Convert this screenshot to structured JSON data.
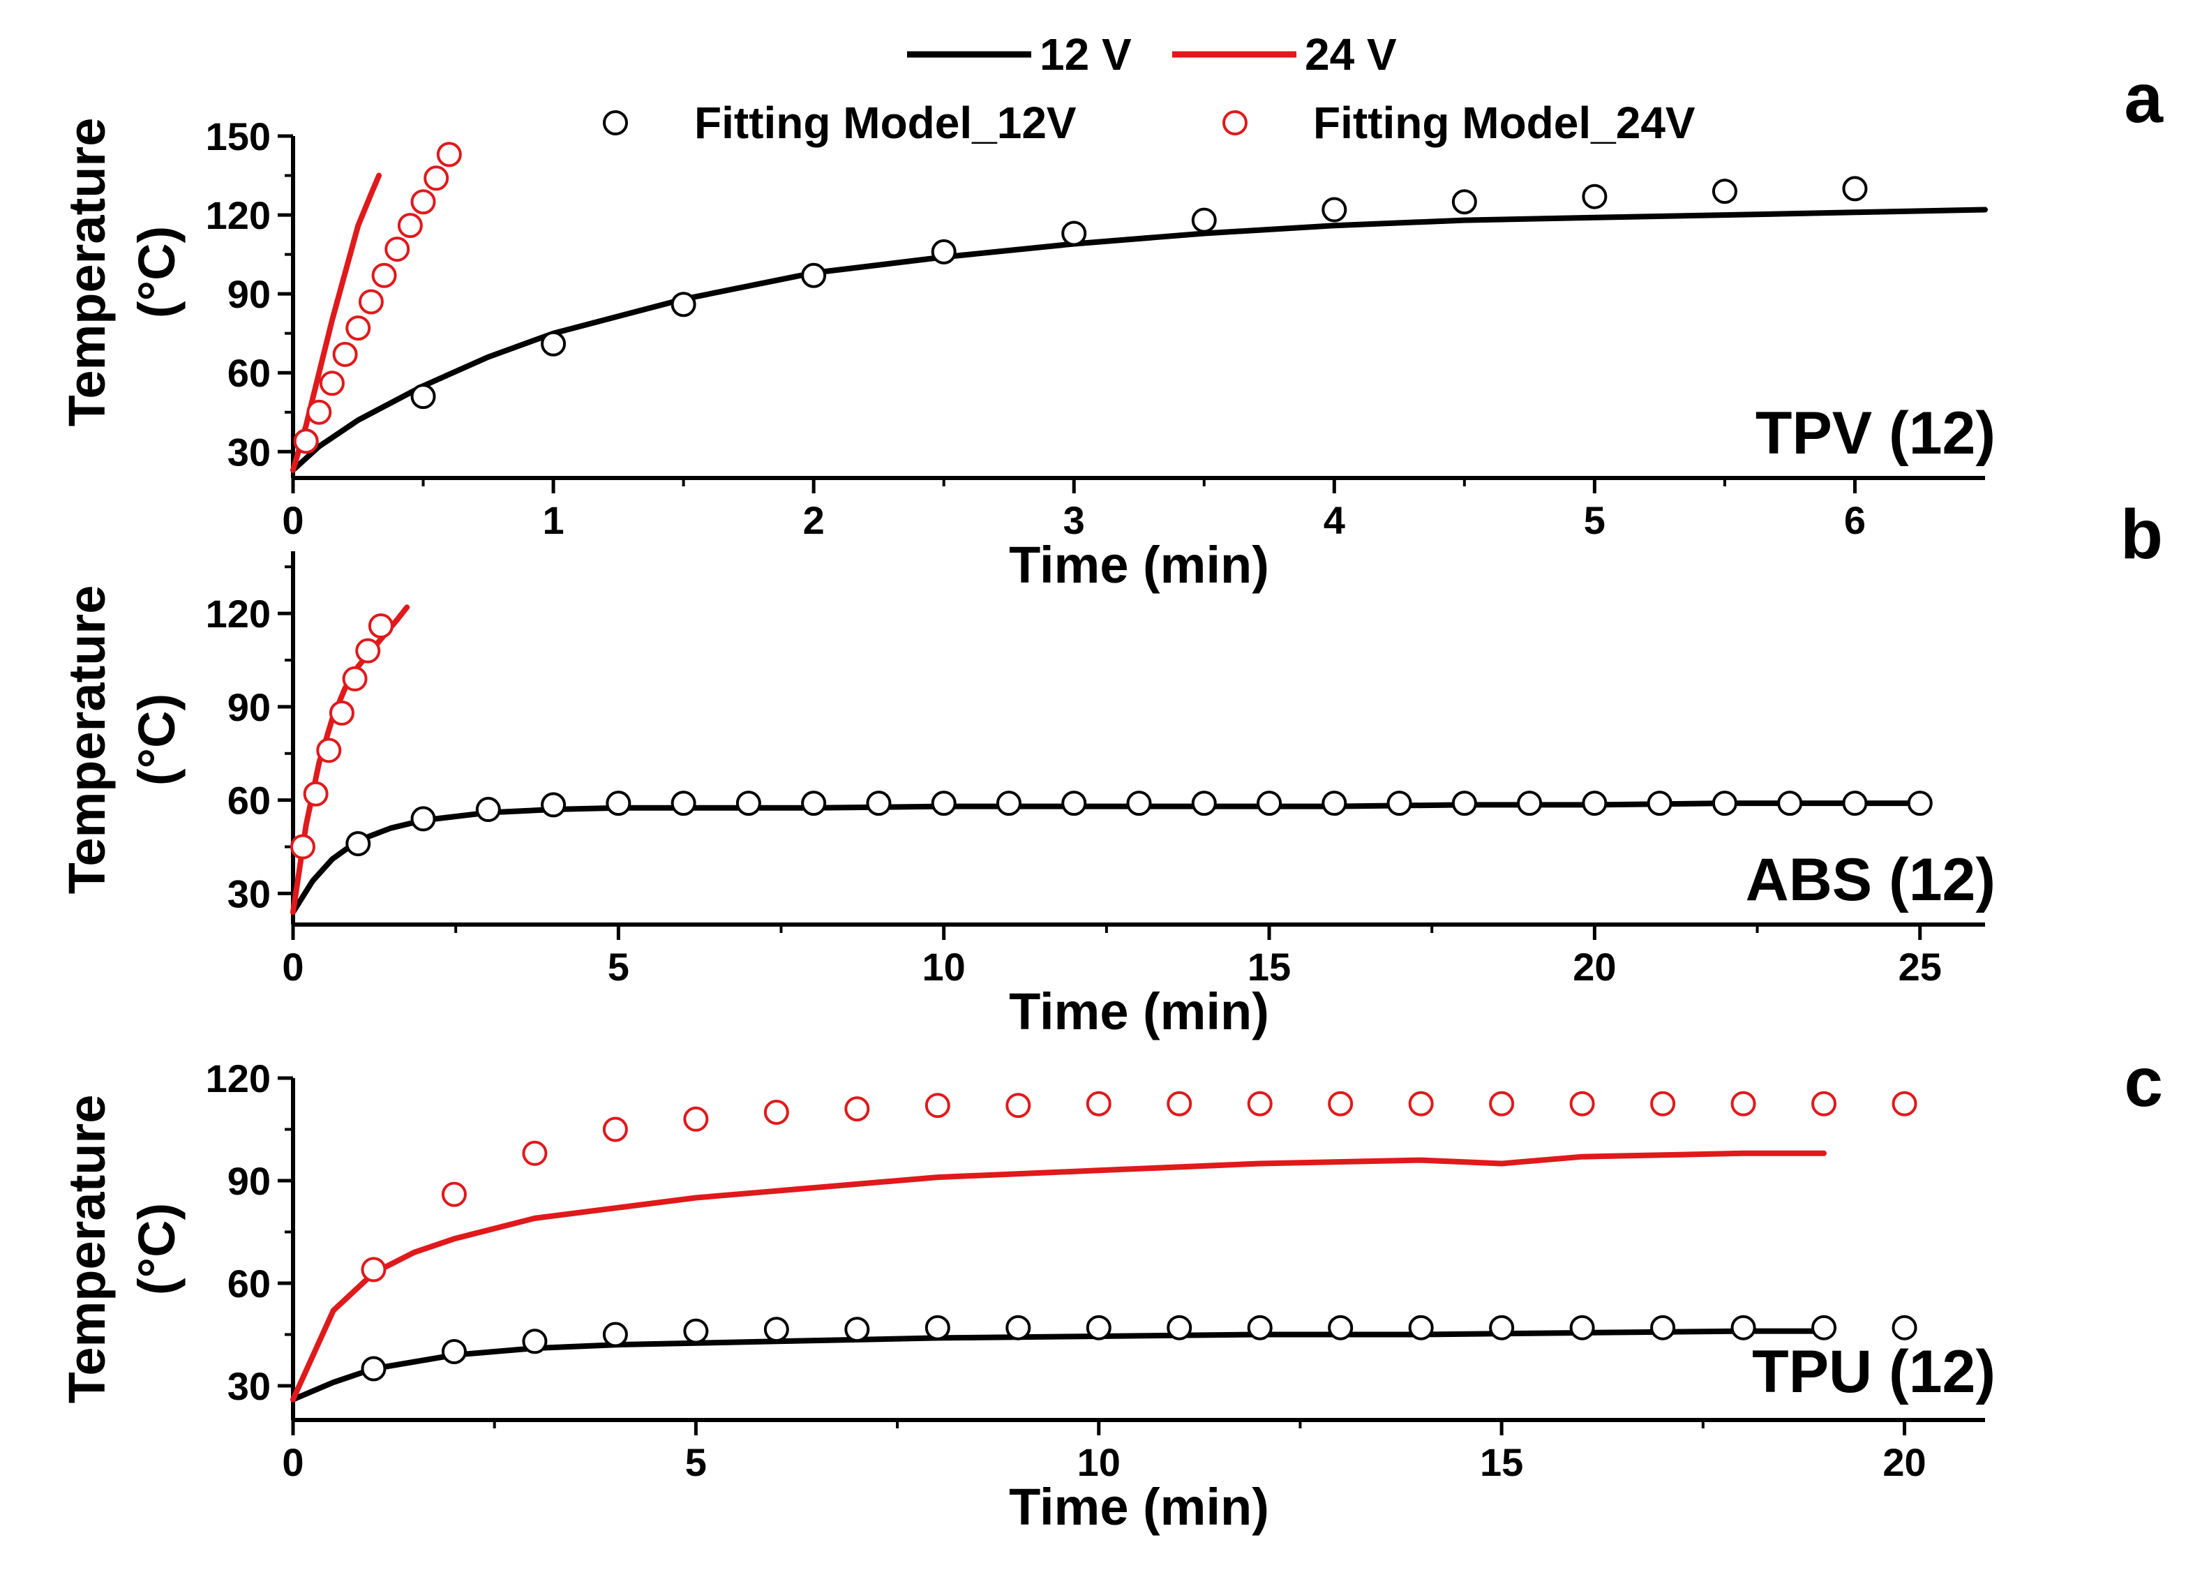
{
  "figure": {
    "legend": {
      "line_12v": "12 V",
      "line_24v": "24 V",
      "fit_12v": "Fitting Model_12V",
      "fit_24v": "Fitting Model_24V"
    },
    "colors": {
      "v12": "#000000",
      "v24": "#e0191b"
    }
  },
  "chart_data": [
    {
      "type": "line",
      "panel": "a",
      "sample_label": "TPV (12)",
      "xlabel": "Time (min)",
      "ylabel_line1": "Temperature",
      "ylabel_line2": "(°C)",
      "xlim": [
        0,
        6.5
      ],
      "ylim": [
        20,
        150
      ],
      "xticks": [
        0,
        1,
        2,
        3,
        4,
        5,
        6
      ],
      "yticks": [
        30,
        60,
        90,
        120,
        150
      ],
      "series": [
        {
          "name": "12 V",
          "kind": "line",
          "color": "#000000",
          "x": [
            0,
            0.1,
            0.25,
            0.5,
            0.75,
            1,
            1.5,
            2,
            2.5,
            3,
            3.5,
            4,
            4.5,
            5,
            5.5,
            6,
            6.5
          ],
          "y": [
            23,
            32,
            42,
            55,
            66,
            75,
            88,
            98,
            104,
            109,
            113,
            116,
            118,
            119,
            120,
            121,
            122
          ]
        },
        {
          "name": "24 V",
          "kind": "line",
          "color": "#e0191b",
          "x": [
            0,
            0.05,
            0.1,
            0.15,
            0.2,
            0.25,
            0.3,
            0.33
          ],
          "y": [
            23,
            40,
            60,
            80,
            98,
            116,
            128,
            135
          ]
        },
        {
          "name": "Fitting Model_12V",
          "kind": "scatter",
          "color": "#000000",
          "x": [
            0.05,
            0.5,
            1,
            1.5,
            2,
            2.5,
            3,
            3.5,
            4,
            4.5,
            5,
            5.5,
            6
          ],
          "y": [
            34,
            51,
            71,
            86,
            97,
            106,
            113,
            118,
            122,
            125,
            127,
            129,
            130
          ]
        },
        {
          "name": "Fitting Model_24V",
          "kind": "scatter",
          "color": "#e0191b",
          "x": [
            0.05,
            0.1,
            0.15,
            0.2,
            0.25,
            0.3,
            0.35,
            0.4,
            0.45,
            0.5,
            0.55,
            0.6
          ],
          "y": [
            34,
            45,
            56,
            67,
            77,
            87,
            97,
            107,
            116,
            125,
            134,
            143
          ]
        }
      ]
    },
    {
      "type": "line",
      "panel": "b",
      "sample_label": "ABS (12)",
      "xlabel": "Time (min)",
      "ylabel_line1": "Temperature",
      "ylabel_line2": "(°C)",
      "xlim": [
        0,
        26
      ],
      "ylim": [
        20,
        140
      ],
      "xticks": [
        0,
        5,
        10,
        15,
        20,
        25
      ],
      "yticks": [
        30,
        60,
        90,
        120
      ],
      "series": [
        {
          "name": "12 V",
          "kind": "line",
          "color": "#000000",
          "x": [
            0,
            0.3,
            0.6,
            1,
            1.5,
            2,
            3,
            4,
            5,
            6,
            8,
            10,
            12,
            14,
            16,
            18,
            20,
            22,
            24,
            25
          ],
          "y": [
            24,
            34,
            41,
            47,
            51,
            53.5,
            56,
            57,
            57.5,
            57.5,
            57.5,
            58,
            58,
            58,
            58,
            58.5,
            58.5,
            59,
            59,
            59
          ]
        },
        {
          "name": "24 V",
          "kind": "line",
          "color": "#e0191b",
          "x": [
            0,
            0.2,
            0.4,
            0.6,
            0.8,
            1,
            1.2,
            1.4,
            1.6,
            1.75
          ],
          "y": [
            24,
            52,
            72,
            86,
            96,
            103,
            108,
            113,
            118,
            122
          ]
        },
        {
          "name": "Fitting Model_12V",
          "kind": "scatter",
          "color": "#000000",
          "x": [
            1,
            2,
            3,
            4,
            5,
            6,
            7,
            8,
            9,
            10,
            11,
            12,
            13,
            14,
            15,
            16,
            17,
            18,
            19,
            20,
            21,
            22,
            23,
            24,
            25
          ],
          "y": [
            46,
            54,
            57,
            58.5,
            59,
            59,
            59,
            59,
            59,
            59,
            59,
            59,
            59,
            59,
            59,
            59,
            59,
            59,
            59,
            59,
            59,
            59,
            59,
            59,
            59
          ]
        },
        {
          "name": "Fitting Model_24V",
          "kind": "scatter",
          "color": "#e0191b",
          "x": [
            0.15,
            0.35,
            0.55,
            0.75,
            0.95,
            1.15,
            1.35
          ],
          "y": [
            45,
            62,
            76,
            88,
            99,
            108,
            116
          ]
        }
      ]
    },
    {
      "type": "line",
      "panel": "c",
      "sample_label": "TPU (12)",
      "xlabel": "Time (min)",
      "ylabel_line1": "Temperature",
      "ylabel_line2": "(°C)",
      "xlim": [
        0,
        21
      ],
      "ylim": [
        20,
        120
      ],
      "xticks": [
        0,
        5,
        10,
        15,
        20
      ],
      "yticks": [
        30,
        60,
        90,
        120
      ],
      "series": [
        {
          "name": "12 V",
          "kind": "line",
          "color": "#000000",
          "x": [
            0,
            0.5,
            1,
            2,
            3,
            4,
            5,
            6,
            8,
            10,
            12,
            14,
            16,
            18,
            19
          ],
          "y": [
            26,
            31,
            35,
            39,
            41,
            42,
            42.5,
            43,
            44,
            44.5,
            45,
            45,
            45.5,
            46,
            46
          ]
        },
        {
          "name": "24 V",
          "kind": "line",
          "color": "#e0191b",
          "x": [
            0,
            0.5,
            1,
            1.5,
            2,
            3,
            4,
            5,
            6,
            7,
            8,
            10,
            12,
            14,
            15,
            16,
            18,
            19
          ],
          "y": [
            26,
            52,
            63,
            69,
            73,
            79,
            82,
            85,
            87,
            89,
            91,
            93,
            95,
            96,
            95,
            97,
            98,
            98
          ]
        },
        {
          "name": "Fitting Model_12V",
          "kind": "scatter",
          "color": "#000000",
          "x": [
            1,
            2,
            3,
            4,
            5,
            6,
            7,
            8,
            9,
            10,
            11,
            12,
            13,
            14,
            15,
            16,
            17,
            18,
            19,
            20
          ],
          "y": [
            35,
            40,
            43,
            45,
            46,
            46.5,
            46.5,
            47,
            47,
            47,
            47,
            47,
            47,
            47,
            47,
            47,
            47,
            47,
            47,
            47
          ]
        },
        {
          "name": "Fitting Model_24V",
          "kind": "scatter",
          "color": "#e0191b",
          "x": [
            1,
            2,
            3,
            4,
            5,
            6,
            7,
            8,
            9,
            10,
            11,
            12,
            13,
            14,
            15,
            16,
            17,
            18,
            19,
            20
          ],
          "y": [
            64,
            86,
            98,
            105,
            108,
            110,
            111,
            112,
            112,
            112.5,
            112.5,
            112.5,
            112.5,
            112.5,
            112.5,
            112.5,
            112.5,
            112.5,
            112.5,
            112.5
          ]
        }
      ]
    }
  ]
}
